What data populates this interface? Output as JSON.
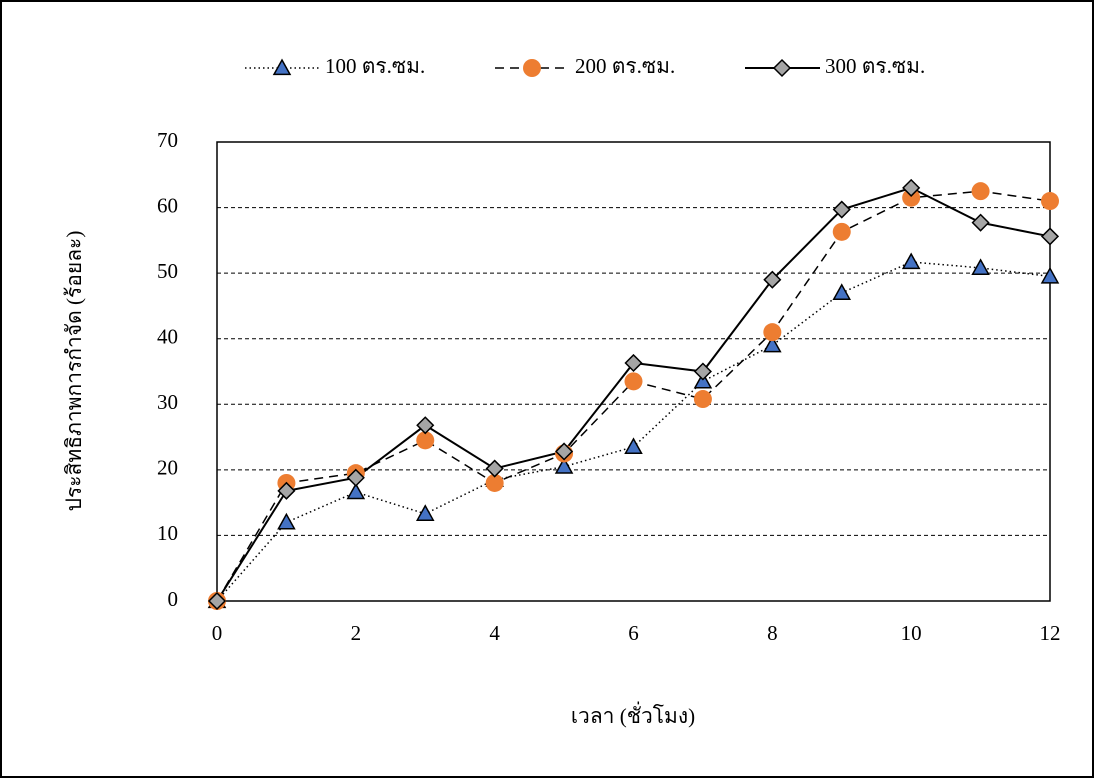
{
  "chart_data": {
    "type": "line",
    "x_label": "เวลา (ชั่วโมง)",
    "y_label": "ประสิทธิภาพการกำจัด (ร้อยละ)",
    "x": [
      0,
      1,
      2,
      3,
      4,
      5,
      6,
      7,
      8,
      9,
      10,
      11,
      12
    ],
    "series": [
      {
        "name": "100 ตร.ซม.",
        "color": "#4472c4",
        "line_style": "dotted",
        "marker": "triangle",
        "values": [
          0,
          12,
          16.6,
          13.3,
          18.5,
          20.5,
          23.5,
          33.5,
          39,
          47,
          51.7,
          50.8,
          49.5
        ]
      },
      {
        "name": "200 ตร.ซม.",
        "color": "#ed7d31",
        "line_style": "dashed",
        "marker": "circle",
        "values": [
          0,
          18,
          19.5,
          24.5,
          18,
          22.5,
          33.5,
          30.8,
          41,
          56.3,
          61.5,
          62.5,
          61
        ]
      },
      {
        "name": "300 ตร.ซม.",
        "color": "#a5a5a5",
        "line_style": "solid",
        "marker": "diamond",
        "values": [
          0,
          16.8,
          18.8,
          26.8,
          20.2,
          22.8,
          36.3,
          35,
          49,
          59.7,
          63,
          57.7,
          55.6
        ]
      }
    ],
    "xlim": [
      0,
      12
    ],
    "xticks": [
      0,
      2,
      4,
      6,
      8,
      10,
      12
    ],
    "ylim": [
      0,
      70
    ],
    "yticks": [
      0,
      10,
      20,
      30,
      40,
      50,
      60,
      70
    ],
    "grid": true,
    "legend": "top"
  }
}
